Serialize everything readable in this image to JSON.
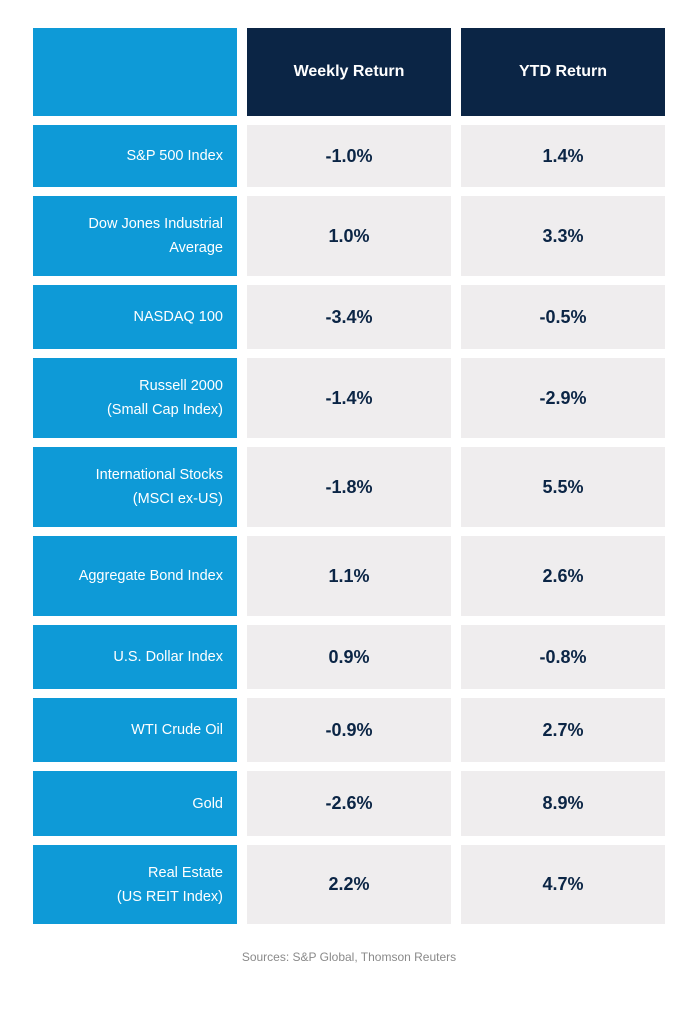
{
  "header": {
    "weekly_label": "Weekly Return",
    "ytd_label": "YTD Return"
  },
  "rows": [
    {
      "label": "S&P 500 Index",
      "weekly": "-1.0%",
      "ytd": "1.4%"
    },
    {
      "label": "Dow Jones Industrial\nAverage",
      "weekly": "1.0%",
      "ytd": "3.3%"
    },
    {
      "label": "NASDAQ 100",
      "weekly": "-3.4%",
      "ytd": "-0.5%"
    },
    {
      "label": "Russell 2000 \n(Small Cap Index)",
      "weekly": "-1.4%",
      "ytd": "-2.9%"
    },
    {
      "label": "International Stocks\n(MSCI ex-US)",
      "weekly": "-1.8%",
      "ytd": "5.5%"
    },
    {
      "label": "Aggregate Bond Index",
      "weekly": "1.1%",
      "ytd": "2.6%"
    },
    {
      "label": "U.S. Dollar Index",
      "weekly": "0.9%",
      "ytd": "-0.8%"
    },
    {
      "label": "WTI Crude Oil",
      "weekly": "-0.9%",
      "ytd": "2.7%"
    },
    {
      "label": "Gold",
      "weekly": "-2.6%",
      "ytd": "8.9%"
    },
    {
      "label": "Real Estate \n(US REIT Index)",
      "weekly": "2.2%",
      "ytd": "4.7%"
    }
  ],
  "footer": {
    "sources": "Sources:  S&P Global, Thomson Reuters"
  },
  "colors": {
    "label_bg": "#0e9ad7",
    "header_bg": "#0b2545",
    "value_bg": "#efedee",
    "value_text": "#0b2545"
  }
}
